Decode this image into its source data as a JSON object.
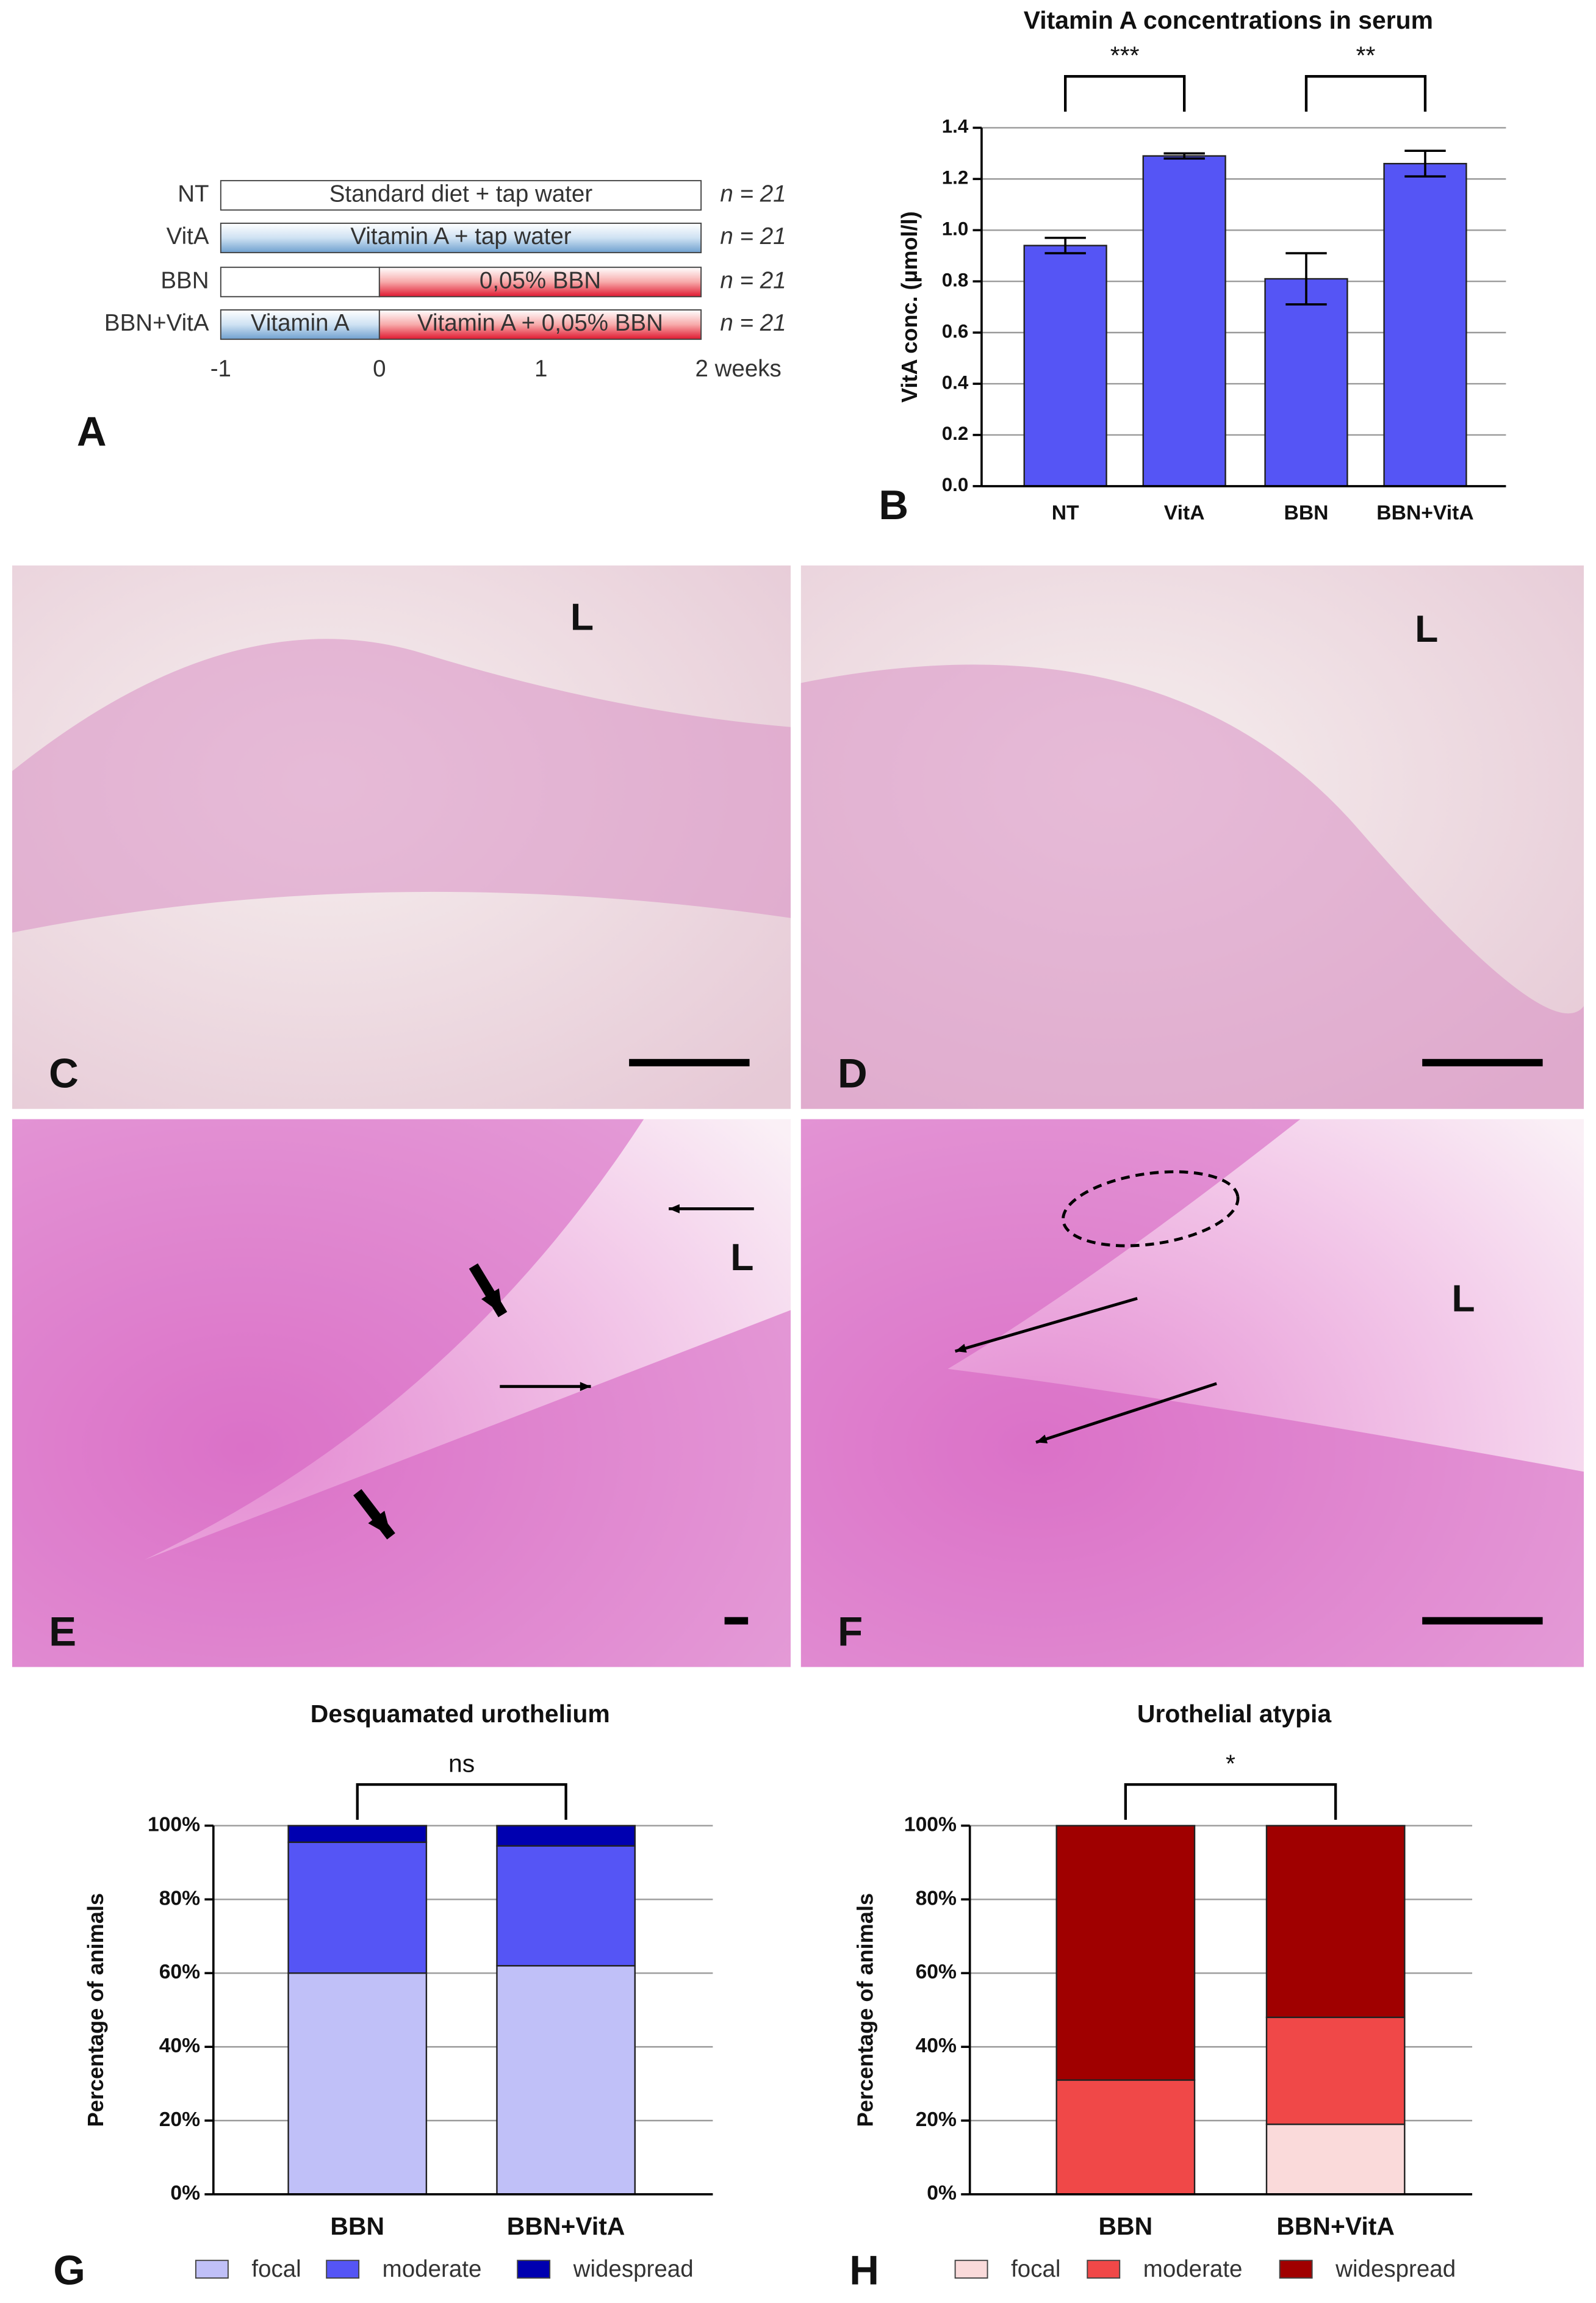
{
  "diagram": {
    "panel": "A",
    "rows": [
      {
        "label": "NT",
        "segments": [
          "Standard diet + tap water"
        ],
        "sample": "n = 21"
      },
      {
        "label": "VitA",
        "segments": [
          "Vitamin A + tap water"
        ],
        "sample": "n = 21"
      },
      {
        "label": "BBN",
        "segments": [
          "0,05% BBN"
        ],
        "sample": "n = 21"
      },
      {
        "label": "BBN+VitA",
        "segments": [
          "Vitamin A",
          "Vitamin A + 0,05% BBN"
        ],
        "sample": "n = 21"
      }
    ],
    "timeline": [
      "-1",
      "0",
      "1",
      "2 weeks"
    ]
  },
  "photos": [
    {
      "panel": "C",
      "lumen": "L"
    },
    {
      "panel": "D",
      "lumen": "L"
    },
    {
      "panel": "E",
      "lumen": "L"
    },
    {
      "panel": "F",
      "lumen": "L"
    }
  ],
  "chart_data": [
    {
      "type": "bar",
      "panel": "B",
      "title": "Vitamin A concentrations in serum",
      "y_label": "VitA conc. (µmol/l)",
      "categories": [
        "NT",
        "VitA",
        "BBN",
        "BBN+VitA"
      ],
      "values": [
        0.94,
        1.29,
        0.81,
        1.26
      ],
      "errors": [
        0.03,
        0.01,
        0.1,
        0.05
      ],
      "color": "#5555f5",
      "ylim": [
        0,
        1.4
      ],
      "yticks": [
        {
          "value": 0,
          "label": "0.0"
        },
        0.2,
        0.4,
        0.6,
        0.8,
        {
          "value": 1,
          "label": "1.0"
        },
        1.2,
        1.4
      ],
      "grid": true,
      "annotations": [
        "***",
        "**"
      ]
    },
    {
      "type": "stacked_bar",
      "panel": "G",
      "title": "Desquamated urothelium",
      "y_label": "Percentage of animals",
      "categories": [
        "BBN",
        "BBN+VitA"
      ],
      "series": [
        {
          "name": "focal",
          "color": "#c0c0f8",
          "values": [
            60,
            62
          ]
        },
        {
          "name": "moderate",
          "color": "#5555f5",
          "values": [
            35.5,
            32.5
          ]
        },
        {
          "name": "widespread",
          "color": "#0000b0",
          "values": [
            4.5,
            5.5
          ]
        }
      ],
      "ylim": [
        0,
        100
      ],
      "yticks": [
        {
          "value": 0,
          "label": "0%"
        },
        {
          "value": 20,
          "label": "20%"
        },
        {
          "value": 40,
          "label": "40%"
        },
        {
          "value": 60,
          "label": "60%"
        },
        {
          "value": 80,
          "label": "80%"
        },
        {
          "value": 100,
          "label": "100%"
        }
      ],
      "grid": true,
      "annotations": [
        "ns"
      ]
    },
    {
      "type": "stacked_bar",
      "panel": "H",
      "title": "Urothelial atypia",
      "y_label": "Percentage of animals",
      "categories": [
        "BBN",
        "BBN+VitA"
      ],
      "series": [
        {
          "name": "focal",
          "color": "#fadada",
          "values": [
            0,
            19
          ]
        },
        {
          "name": "moderate",
          "color": "#f04848",
          "values": [
            31,
            29
          ]
        },
        {
          "name": "widespread",
          "color": "#a00000",
          "values": [
            69,
            52
          ]
        }
      ],
      "ylim": [
        0,
        100
      ],
      "yticks": [
        {
          "value": 0,
          "label": "0%"
        },
        {
          "value": 20,
          "label": "20%"
        },
        {
          "value": 40,
          "label": "40%"
        },
        {
          "value": 60,
          "label": "60%"
        },
        {
          "value": 80,
          "label": "80%"
        },
        {
          "value": 100,
          "label": "100%"
        }
      ],
      "grid": true,
      "annotations": [
        "*"
      ]
    }
  ]
}
